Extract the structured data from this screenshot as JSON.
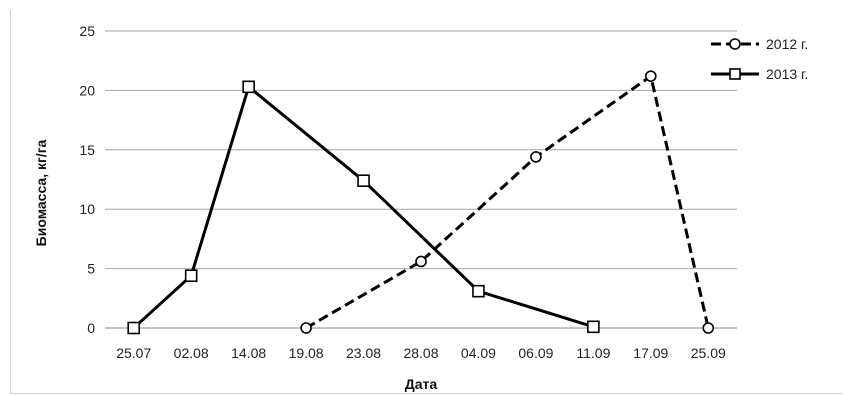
{
  "chart_data": {
    "type": "line",
    "categories": [
      "25.07",
      "02.08",
      "14.08",
      "19.08",
      "23.08",
      "28.08",
      "04.09",
      "06.09",
      "11.09",
      "17.09",
      "25.09"
    ],
    "xlabel": "Дата",
    "ylabel": "Биомасса, кг/га",
    "ylim": [
      0,
      25
    ],
    "yticks": [
      0,
      5,
      10,
      15,
      20,
      25
    ],
    "grid": "horizontal",
    "legend": "top-right",
    "series": [
      {
        "name": "2012 г.",
        "style": "dashed",
        "marker": "circle",
        "values": [
          null,
          null,
          null,
          0,
          null,
          5.6,
          null,
          14.4,
          null,
          21.2,
          0
        ]
      },
      {
        "name": "2013 г.",
        "style": "solid",
        "marker": "square",
        "values": [
          0,
          4.4,
          20.3,
          null,
          12.4,
          null,
          3.1,
          null,
          0.1,
          null,
          null
        ]
      }
    ]
  }
}
